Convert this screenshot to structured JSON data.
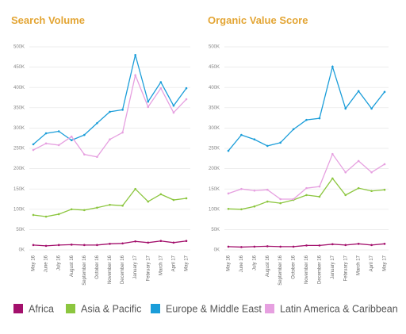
{
  "chart_data": [
    {
      "type": "line",
      "title": "Search Volume",
      "categories": [
        "May 16",
        "June 16",
        "July 16",
        "August 16",
        "September 16",
        "October 16",
        "November 16",
        "December 16",
        "January 17",
        "February 17",
        "March 17",
        "April 17",
        "May 17"
      ],
      "ylim": [
        0,
        500000
      ],
      "yticks": [
        {
          "value": 0,
          "label": "0K"
        },
        {
          "value": 50000,
          "label": "50K"
        },
        {
          "value": 100000,
          "label": "100K"
        },
        {
          "value": 150000,
          "label": "150K"
        },
        {
          "value": 200000,
          "label": "200K"
        },
        {
          "value": 250000,
          "label": "250K"
        },
        {
          "value": 300000,
          "label": "300K"
        },
        {
          "value": 350000,
          "label": "350K"
        },
        {
          "value": 400000,
          "label": "400K"
        },
        {
          "value": 450000,
          "label": "450K"
        },
        {
          "value": 500000,
          "label": "500K"
        }
      ],
      "grid": true,
      "series": [
        {
          "name": "Africa",
          "color": "#a3106c",
          "values": [
            12000,
            10000,
            12000,
            13000,
            12000,
            12000,
            15000,
            16000,
            21000,
            18000,
            22000,
            18000,
            22000
          ]
        },
        {
          "name": "Asia & Pacific",
          "color": "#8cc63f",
          "values": [
            86000,
            82000,
            88000,
            100000,
            98000,
            104000,
            111000,
            109000,
            150000,
            119000,
            137000,
            123000,
            127000
          ]
        },
        {
          "name": "Europe & Middle East",
          "color": "#1a9dd9",
          "values": [
            260000,
            287000,
            292000,
            270000,
            283000,
            312000,
            340000,
            345000,
            480000,
            365000,
            413000,
            355000,
            398000
          ]
        },
        {
          "name": "Latin America & Caribbean",
          "color": "#e6a0e0",
          "values": [
            246000,
            262000,
            258000,
            279000,
            235000,
            229000,
            272000,
            289000,
            430000,
            352000,
            398000,
            338000,
            371000
          ]
        }
      ]
    },
    {
      "type": "line",
      "title": "Organic Value Score",
      "categories": [
        "May 16",
        "June 16",
        "July 16",
        "August 16",
        "September 16",
        "October 16",
        "November 16",
        "December 16",
        "January 17",
        "February 17",
        "March 17",
        "April 17",
        "May 17"
      ],
      "ylim": [
        0,
        500000
      ],
      "yticks": [
        {
          "value": 0,
          "label": "0K"
        },
        {
          "value": 50000,
          "label": "50K"
        },
        {
          "value": 100000,
          "label": "100K"
        },
        {
          "value": 150000,
          "label": "150K"
        },
        {
          "value": 200000,
          "label": "200K"
        },
        {
          "value": 250000,
          "label": "250K"
        },
        {
          "value": 300000,
          "label": "300K"
        },
        {
          "value": 350000,
          "label": "350K"
        },
        {
          "value": 400000,
          "label": "400K"
        },
        {
          "value": 450000,
          "label": "450K"
        },
        {
          "value": 500000,
          "label": "500K"
        }
      ],
      "grid": true,
      "series": [
        {
          "color": "#a3106c",
          "values": [
            8000,
            7000,
            8000,
            9000,
            8000,
            8000,
            11000,
            11000,
            14000,
            12000,
            15000,
            12000,
            15000
          ]
        },
        {
          "color": "#8cc63f",
          "values": [
            101000,
            100000,
            107000,
            119000,
            115000,
            123000,
            135000,
            131000,
            176000,
            135000,
            152000,
            145000,
            148000
          ]
        },
        {
          "color": "#1a9dd9",
          "values": [
            244000,
            283000,
            272000,
            256000,
            264000,
            297000,
            320000,
            324000,
            451000,
            348000,
            391000,
            348000,
            389000
          ]
        },
        {
          "color": "#e6a0e0",
          "values": [
            139000,
            150000,
            146000,
            148000,
            125000,
            125000,
            152000,
            156000,
            236000,
            191000,
            219000,
            191000,
            211000
          ]
        }
      ]
    }
  ]
}
